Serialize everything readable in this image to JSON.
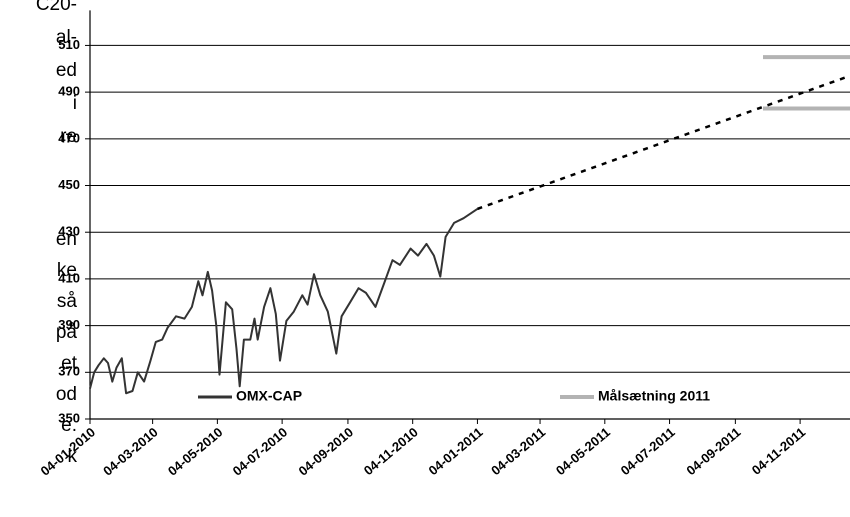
{
  "side_text": [
    "C20-",
    "al-",
    "ed",
    "i",
    "re",
    "en",
    "ke",
    "så",
    "på",
    "et",
    "od",
    "e.",
    "k"
  ],
  "chart_data": {
    "type": "line",
    "xlim": [
      "04-01-2010",
      "21-12-2011"
    ],
    "xticks": [
      "04-01-2010",
      "04-03-2010",
      "04-05-2010",
      "04-07-2010",
      "04-09-2010",
      "04-11-2010",
      "04-01-2011",
      "04-03-2011",
      "04-05-2011",
      "04-07-2011",
      "04-09-2011",
      "04-11-2011"
    ],
    "ylim": [
      350,
      525
    ],
    "yticks": [
      350,
      370,
      390,
      410,
      430,
      450,
      470,
      490,
      510
    ],
    "grid": true,
    "series": [
      {
        "name": "OMX-CAP",
        "color": "#333333",
        "style": "solid",
        "x": [
          "04-01-2010",
          "08-01-2010",
          "12-01-2010",
          "17-01-2010",
          "21-01-2010",
          "25-01-2010",
          "29-01-2010",
          "03-02-2010",
          "07-02-2010",
          "13-02-2010",
          "18-02-2010",
          "24-02-2010",
          "02-03-2010",
          "07-03-2010",
          "13-03-2010",
          "18-03-2010",
          "26-03-2010",
          "03-04-2010",
          "10-04-2010",
          "16-04-2010",
          "20-04-2010",
          "25-04-2010",
          "29-04-2010",
          "03-05-2010",
          "06-05-2010",
          "12-05-2010",
          "18-05-2010",
          "22-05-2010",
          "25-05-2010",
          "29-05-2010",
          "04-06-2010",
          "08-06-2010",
          "11-06-2010",
          "17-06-2010",
          "23-06-2010",
          "28-06-2010",
          "02-07-2010",
          "08-07-2010",
          "15-07-2010",
          "23-07-2010",
          "28-07-2010",
          "03-08-2010",
          "09-08-2010",
          "16-08-2010",
          "24-08-2010",
          "29-08-2010",
          "06-09-2010",
          "14-09-2010",
          "21-09-2010",
          "30-09-2010",
          "08-10-2010",
          "16-10-2010",
          "23-10-2010",
          "02-11-2010",
          "09-11-2010",
          "17-11-2010",
          "24-11-2010",
          "30-11-2010",
          "05-12-2010",
          "13-12-2010",
          "22-12-2010",
          "04-01-2011"
        ],
        "values": [
          363,
          370,
          373,
          376,
          374,
          366,
          372,
          376,
          361,
          362,
          370,
          366,
          375,
          383,
          384,
          389,
          394,
          393,
          398,
          409,
          403,
          413,
          405,
          390,
          369,
          400,
          397,
          380,
          364,
          384,
          384,
          393,
          384,
          398,
          406,
          395,
          375,
          392,
          396,
          403,
          399,
          412,
          403,
          396,
          378,
          394,
          400,
          406,
          404,
          398,
          408,
          418,
          416,
          423,
          420,
          425,
          420,
          411,
          428,
          434,
          436,
          440
        ]
      },
      {
        "color": "#000000",
        "style": "dashed",
        "x": [
          "04-01-2011",
          "21-12-2011"
        ],
        "values": [
          440,
          497
        ]
      },
      {
        "name": "Målsætning 2011",
        "color": "#b3b3b3",
        "style": "thick",
        "x": [
          "30-09-2011",
          "21-12-2011"
        ],
        "values": [
          505,
          505
        ]
      },
      {
        "color": "#b3b3b3",
        "style": "thick",
        "x": [
          "30-09-2011",
          "21-12-2011"
        ],
        "values": [
          483,
          483
        ]
      }
    ]
  }
}
